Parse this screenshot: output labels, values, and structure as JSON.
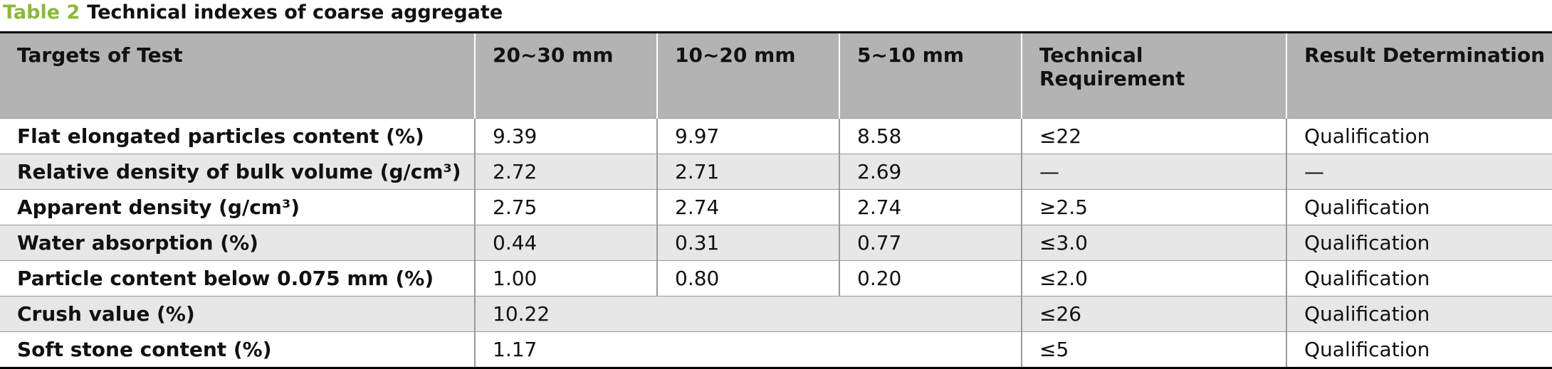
{
  "title": {
    "label": "Table 2",
    "text": "Technical indexes of coarse aggregate"
  },
  "table": {
    "header": [
      "Targets of Test",
      "20~30 mm",
      "10~20 mm",
      "5~10 mm",
      "Technical Requirement",
      "Result Determination"
    ],
    "rows": [
      [
        "Flat elongated particles content (%)",
        "9.39",
        "9.97",
        "8.58",
        "≤22",
        "Qualification"
      ],
      [
        "Relative density of bulk volume (g/cm³)",
        "2.72",
        "2.71",
        "2.69",
        "—",
        "—"
      ],
      [
        "Apparent density (g/cm³)",
        "2.75",
        "2.74",
        "2.74",
        "≥2.5",
        "Qualification"
      ],
      [
        "Water absorption (%)",
        "0.44",
        "0.31",
        "0.77",
        "≤3.0",
        "Qualification"
      ],
      [
        "Particle content below 0.075 mm (%)",
        "1.00",
        "0.80",
        "0.20",
        "≤2.0",
        "Qualification"
      ],
      [
        "Crush value (%)",
        "10.22",
        "≤26",
        "Qualification"
      ],
      [
        "Soft stone content (%)",
        "1.17",
        "≤5",
        "Qualification"
      ]
    ]
  }
}
